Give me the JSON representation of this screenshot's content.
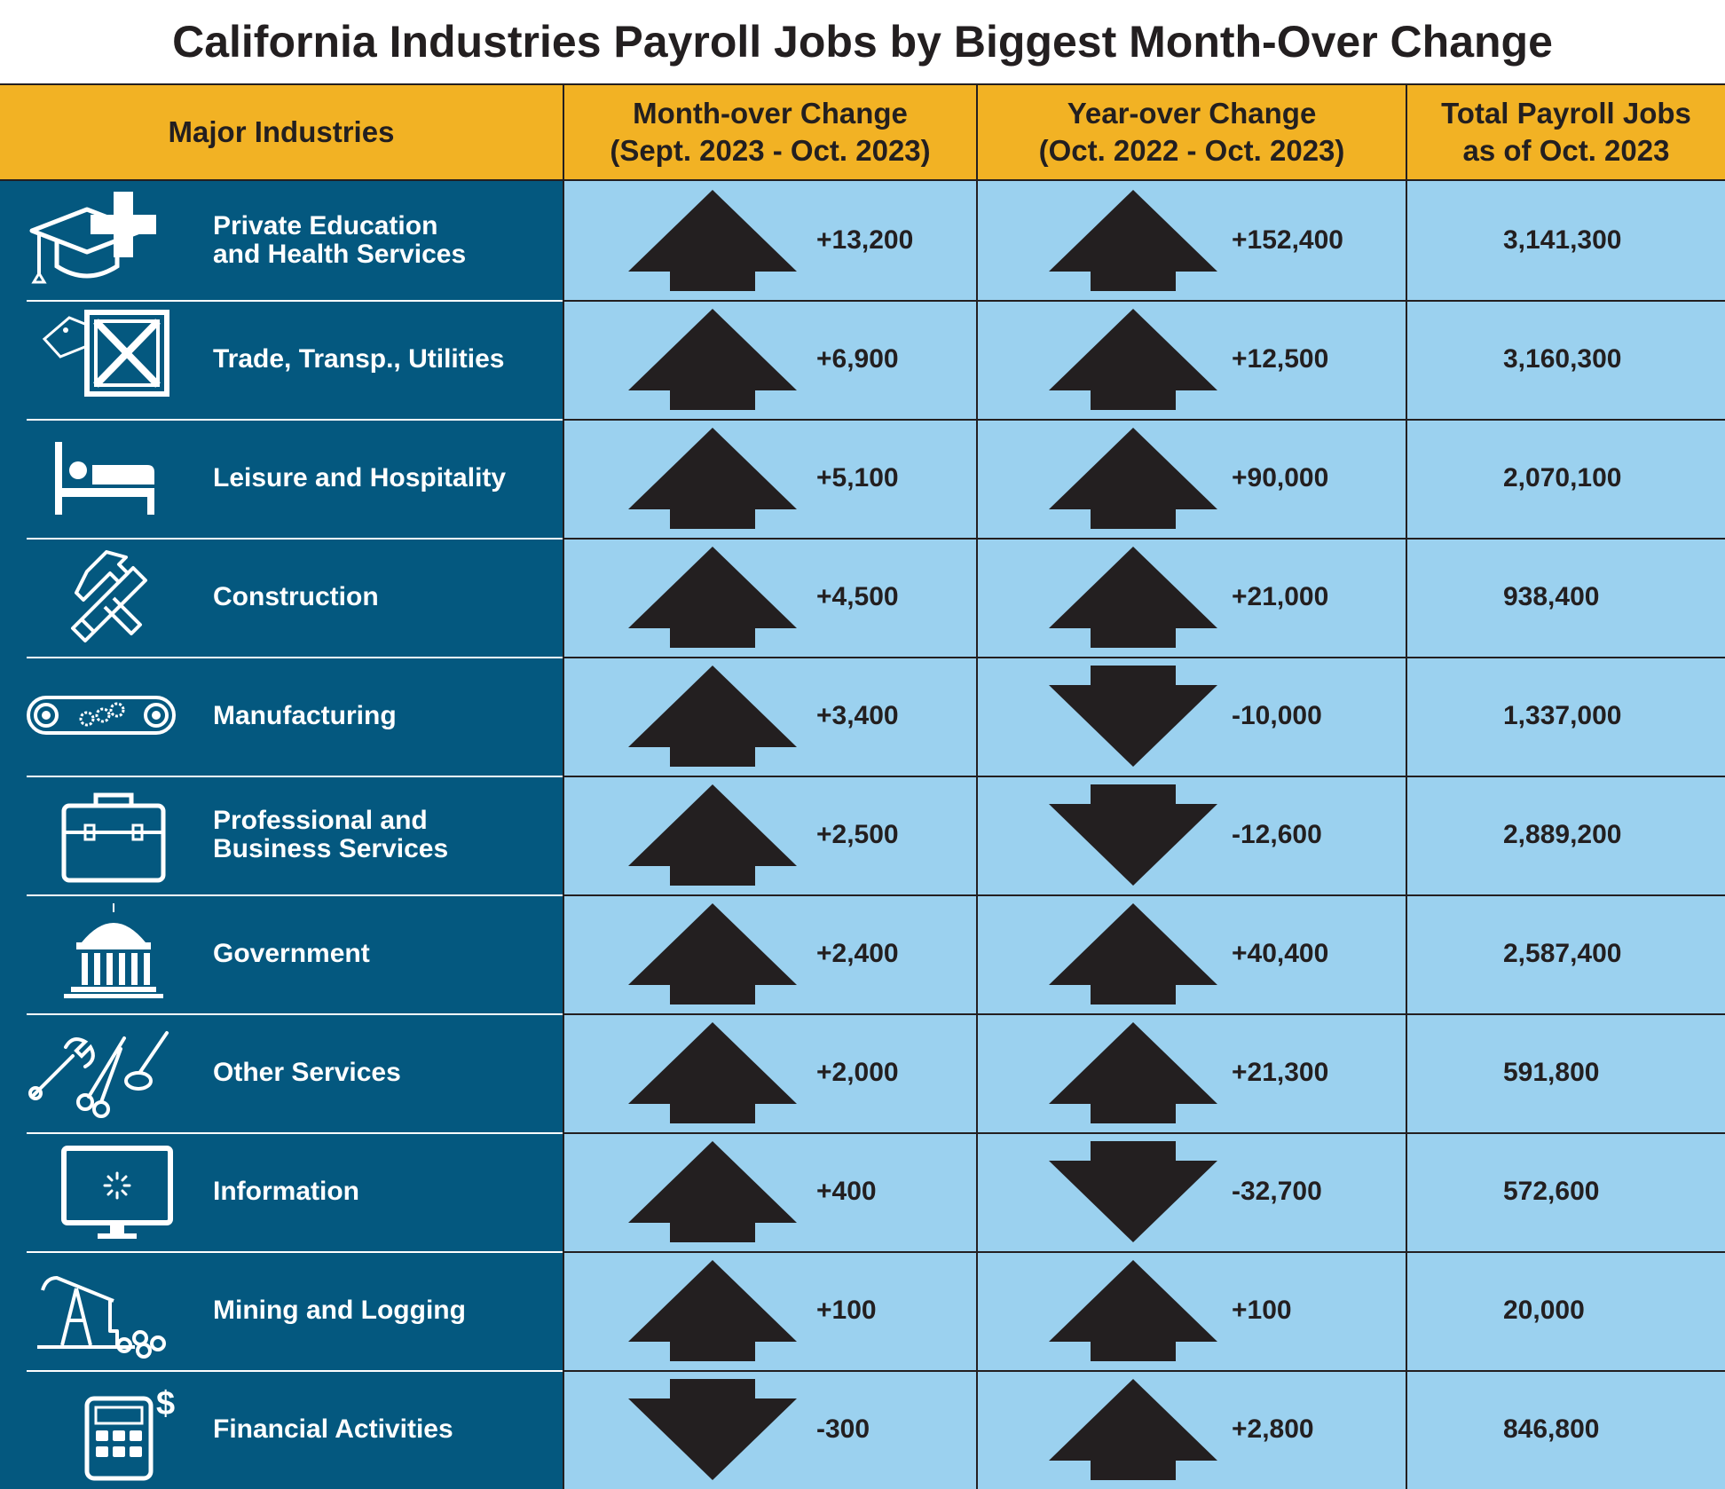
{
  "title": "California Industries Payroll Jobs by Biggest Month-Over Change",
  "colors": {
    "header": "#f2b224",
    "navy": "#04587f",
    "light": "#9bd1ef",
    "arrow": "#231f20"
  },
  "headers": {
    "industry": "Major Industries",
    "month_line1": "Month-over Change",
    "month_line2": "(Sept. 2023 - Oct. 2023)",
    "year_line1": "Year-over Change",
    "year_line2": "(Oct. 2022 - Oct. 2023)",
    "total_line1": "Total Payroll Jobs",
    "total_line2": "as of Oct. 2023"
  },
  "rows": [
    {
      "industry": "Private Education\nand Health Services",
      "icon": "graduation-cap-medical-cross-icon",
      "month_change": "+13,200",
      "month_dir": "up",
      "year_change": "+152,400",
      "year_dir": "up",
      "total": "3,141,300"
    },
    {
      "industry": "Trade, Transp., Utilities",
      "icon": "shipping-crate-icon",
      "month_change": "+6,900",
      "month_dir": "up",
      "year_change": "+12,500",
      "year_dir": "up",
      "total": "3,160,300"
    },
    {
      "industry": "Leisure and Hospitality",
      "icon": "bed-icon",
      "month_change": "+5,100",
      "month_dir": "up",
      "year_change": "+90,000",
      "year_dir": "up",
      "total": "2,070,100"
    },
    {
      "industry": "Construction",
      "icon": "hammer-saw-icon",
      "month_change": "+4,500",
      "month_dir": "up",
      "year_change": "+21,000",
      "year_dir": "up",
      "total": "938,400"
    },
    {
      "industry": "Manufacturing",
      "icon": "conveyor-belt-gears-icon",
      "month_change": "+3,400",
      "month_dir": "up",
      "year_change": "-10,000",
      "year_dir": "down",
      "total": "1,337,000"
    },
    {
      "industry": "Professional and\nBusiness Services",
      "icon": "briefcase-icon",
      "month_change": "+2,500",
      "month_dir": "up",
      "year_change": "-12,600",
      "year_dir": "down",
      "total": "2,889,200"
    },
    {
      "industry": "Government",
      "icon": "capitol-building-icon",
      "month_change": "+2,400",
      "month_dir": "up",
      "year_change": "+40,400",
      "year_dir": "up",
      "total": "2,587,400"
    },
    {
      "industry": "Other Services",
      "icon": "wrench-scissors-brush-icon",
      "month_change": "+2,000",
      "month_dir": "up",
      "year_change": "+21,300",
      "year_dir": "up",
      "total": "591,800"
    },
    {
      "industry": "Information",
      "icon": "computer-monitor-icon",
      "month_change": "+400",
      "month_dir": "up",
      "year_change": "-32,700",
      "year_dir": "down",
      "total": "572,600"
    },
    {
      "industry": "Mining and Logging",
      "icon": "oil-pump-logs-icon",
      "month_change": "+100",
      "month_dir": "up",
      "year_change": "+100",
      "year_dir": "up",
      "total": "20,000"
    },
    {
      "industry": "Financial Activities",
      "icon": "calculator-dollar-icon",
      "month_change": "-300",
      "month_dir": "down",
      "year_change": "+2,800",
      "year_dir": "up",
      "total": "846,800"
    }
  ]
}
